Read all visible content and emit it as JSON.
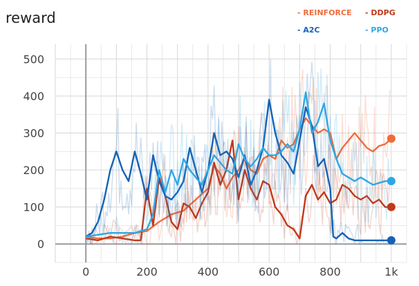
{
  "chart_data": {
    "type": "line",
    "title": "reward",
    "xlabel": "",
    "ylabel": "",
    "xlim": [
      -100,
      1050
    ],
    "ylim": [
      -50,
      540
    ],
    "x_ticks": [
      0,
      200,
      400,
      600,
      800,
      1000
    ],
    "x_tick_labels": [
      "0",
      "200",
      "400",
      "600",
      "800",
      "1k"
    ],
    "y_ticks": [
      0,
      100,
      200,
      300,
      400,
      500
    ],
    "y_tick_labels": [
      "0",
      "100",
      "200",
      "300",
      "400",
      "500"
    ],
    "grid": true,
    "legend_position": "top-right",
    "series": [
      {
        "name": "REINFORCE",
        "color": "#f26b3a",
        "x": [
          0,
          40,
          80,
          120,
          160,
          200,
          240,
          280,
          320,
          360,
          400,
          420,
          440,
          460,
          480,
          500,
          520,
          540,
          560,
          580,
          600,
          620,
          640,
          660,
          680,
          700,
          720,
          740,
          760,
          780,
          800,
          820,
          840,
          860,
          880,
          900,
          920,
          940,
          960,
          980,
          1000
        ],
        "values": [
          20,
          15,
          15,
          20,
          30,
          35,
          60,
          80,
          90,
          120,
          150,
          210,
          190,
          150,
          180,
          200,
          230,
          200,
          190,
          230,
          240,
          230,
          280,
          260,
          270,
          310,
          340,
          320,
          300,
          310,
          300,
          230,
          260,
          280,
          300,
          280,
          260,
          250,
          265,
          270,
          285
        ]
      },
      {
        "name": "DDPG",
        "color": "#c0391b",
        "x": [
          0,
          40,
          80,
          120,
          160,
          180,
          200,
          220,
          240,
          260,
          280,
          300,
          320,
          340,
          360,
          380,
          400,
          420,
          440,
          460,
          480,
          500,
          520,
          540,
          560,
          580,
          600,
          620,
          640,
          660,
          680,
          700,
          720,
          740,
          760,
          780,
          800,
          820,
          840,
          860,
          880,
          900,
          920,
          940,
          960,
          980,
          1000
        ],
        "values": [
          15,
          10,
          20,
          15,
          10,
          10,
          150,
          50,
          180,
          130,
          60,
          40,
          110,
          100,
          70,
          110,
          140,
          220,
          160,
          200,
          280,
          120,
          200,
          150,
          120,
          170,
          160,
          100,
          80,
          50,
          40,
          15,
          130,
          160,
          120,
          140,
          110,
          120,
          160,
          150,
          130,
          120,
          130,
          110,
          120,
          100,
          100
        ]
      },
      {
        "name": "A2C",
        "color": "#1562b5",
        "x": [
          0,
          20,
          40,
          60,
          80,
          100,
          120,
          140,
          160,
          180,
          200,
          220,
          240,
          260,
          280,
          300,
          320,
          340,
          360,
          380,
          400,
          420,
          440,
          460,
          480,
          500,
          520,
          540,
          560,
          580,
          600,
          620,
          640,
          660,
          680,
          700,
          720,
          740,
          760,
          780,
          800,
          810,
          820,
          840,
          860,
          880,
          900,
          920,
          940,
          960,
          980,
          1000
        ],
        "values": [
          20,
          30,
          60,
          120,
          200,
          250,
          200,
          170,
          250,
          190,
          120,
          240,
          170,
          130,
          120,
          140,
          170,
          260,
          200,
          140,
          200,
          300,
          240,
          250,
          230,
          180,
          240,
          160,
          200,
          260,
          390,
          300,
          240,
          220,
          190,
          280,
          370,
          320,
          210,
          230,
          150,
          20,
          15,
          30,
          15,
          10,
          10,
          10,
          10,
          10,
          10,
          10
        ]
      },
      {
        "name": "PPO",
        "color": "#2fa7e4",
        "x": [
          0,
          40,
          80,
          120,
          160,
          200,
          220,
          240,
          260,
          280,
          300,
          320,
          340,
          360,
          380,
          400,
          420,
          440,
          460,
          480,
          500,
          520,
          540,
          560,
          580,
          600,
          620,
          640,
          660,
          680,
          700,
          720,
          740,
          760,
          780,
          800,
          820,
          840,
          860,
          880,
          900,
          920,
          940,
          960,
          980,
          1000
        ],
        "values": [
          20,
          25,
          30,
          30,
          30,
          40,
          80,
          200,
          140,
          200,
          160,
          230,
          200,
          180,
          160,
          200,
          240,
          220,
          200,
          190,
          270,
          230,
          210,
          230,
          260,
          240,
          240,
          250,
          270,
          250,
          310,
          410,
          300,
          330,
          380,
          280,
          230,
          190,
          180,
          170,
          180,
          170,
          160,
          165,
          170,
          170
        ]
      }
    ]
  }
}
